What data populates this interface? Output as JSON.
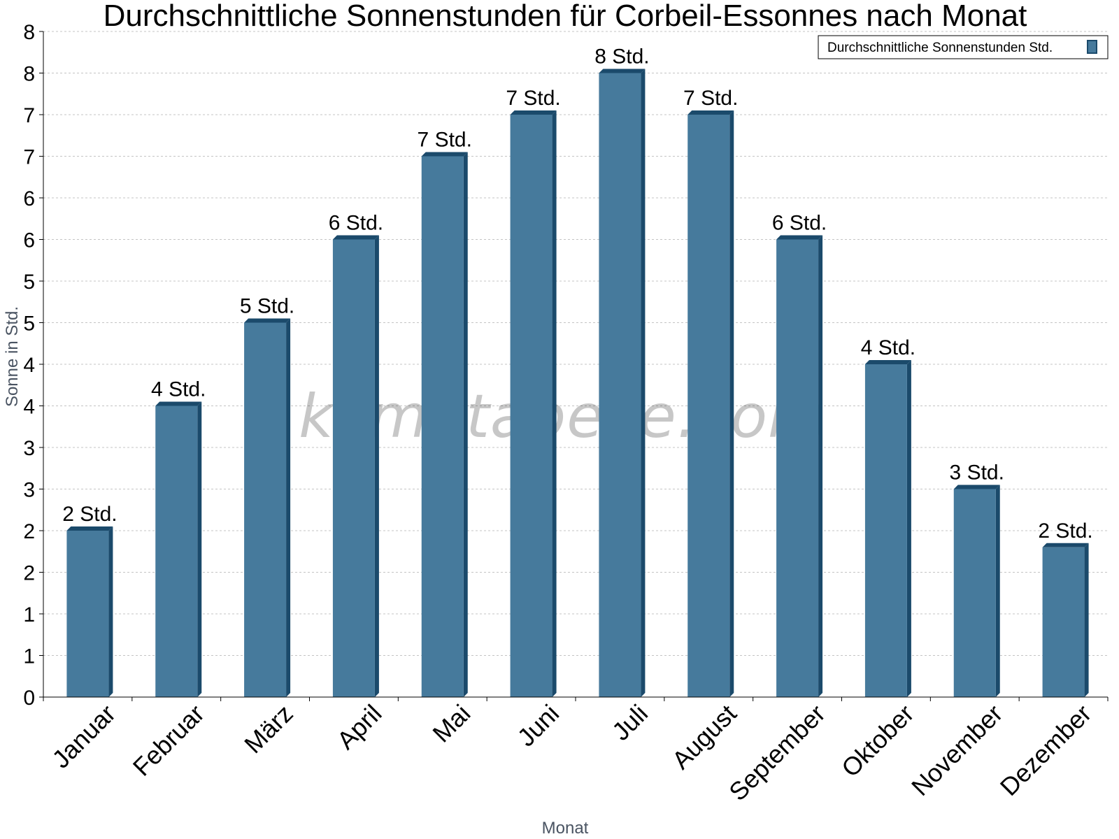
{
  "watermark": "klimatabelle.com",
  "chart_data": {
    "type": "bar",
    "title": "Durchschnittliche Sonnenstunden für Corbeil-Essonnes nach Monat",
    "xlabel": "Monat",
    "ylabel": "Sonne in Std.",
    "ylim": [
      0,
      8
    ],
    "y_tick_values": [
      0,
      0.5,
      1,
      1.5,
      2,
      2.5,
      3,
      3.5,
      4,
      4.5,
      5,
      5.5,
      6,
      6.5,
      7,
      7.5,
      8
    ],
    "y_tick_labels": [
      "0",
      "1",
      "1",
      "2",
      "2",
      "3",
      "3",
      "4",
      "4",
      "5",
      "5",
      "6",
      "6",
      "7",
      "7",
      "8",
      "8"
    ],
    "grid": true,
    "legend": {
      "position": "top-right",
      "entries": [
        "Durchschnittliche Sonnenstunden Std."
      ]
    },
    "categories": [
      "Januar",
      "Februar",
      "März",
      "April",
      "Mai",
      "Juni",
      "Juli",
      "August",
      "September",
      "Oktober",
      "November",
      "Dezember"
    ],
    "series": [
      {
        "name": "Durchschnittliche Sonnenstunden Std.",
        "values": [
          2.0,
          3.5,
          4.5,
          5.5,
          6.5,
          7.0,
          7.5,
          7.0,
          5.5,
          4.0,
          2.5,
          1.8
        ],
        "labels": [
          "2 Std.",
          "4 Std.",
          "5 Std.",
          "6 Std.",
          "7 Std.",
          "7 Std.",
          "8 Std.",
          "7 Std.",
          "6 Std.",
          "4 Std.",
          "3 Std.",
          "2 Std."
        ],
        "color": "#467a9c",
        "edge_color": "#1b4a6b"
      }
    ]
  }
}
